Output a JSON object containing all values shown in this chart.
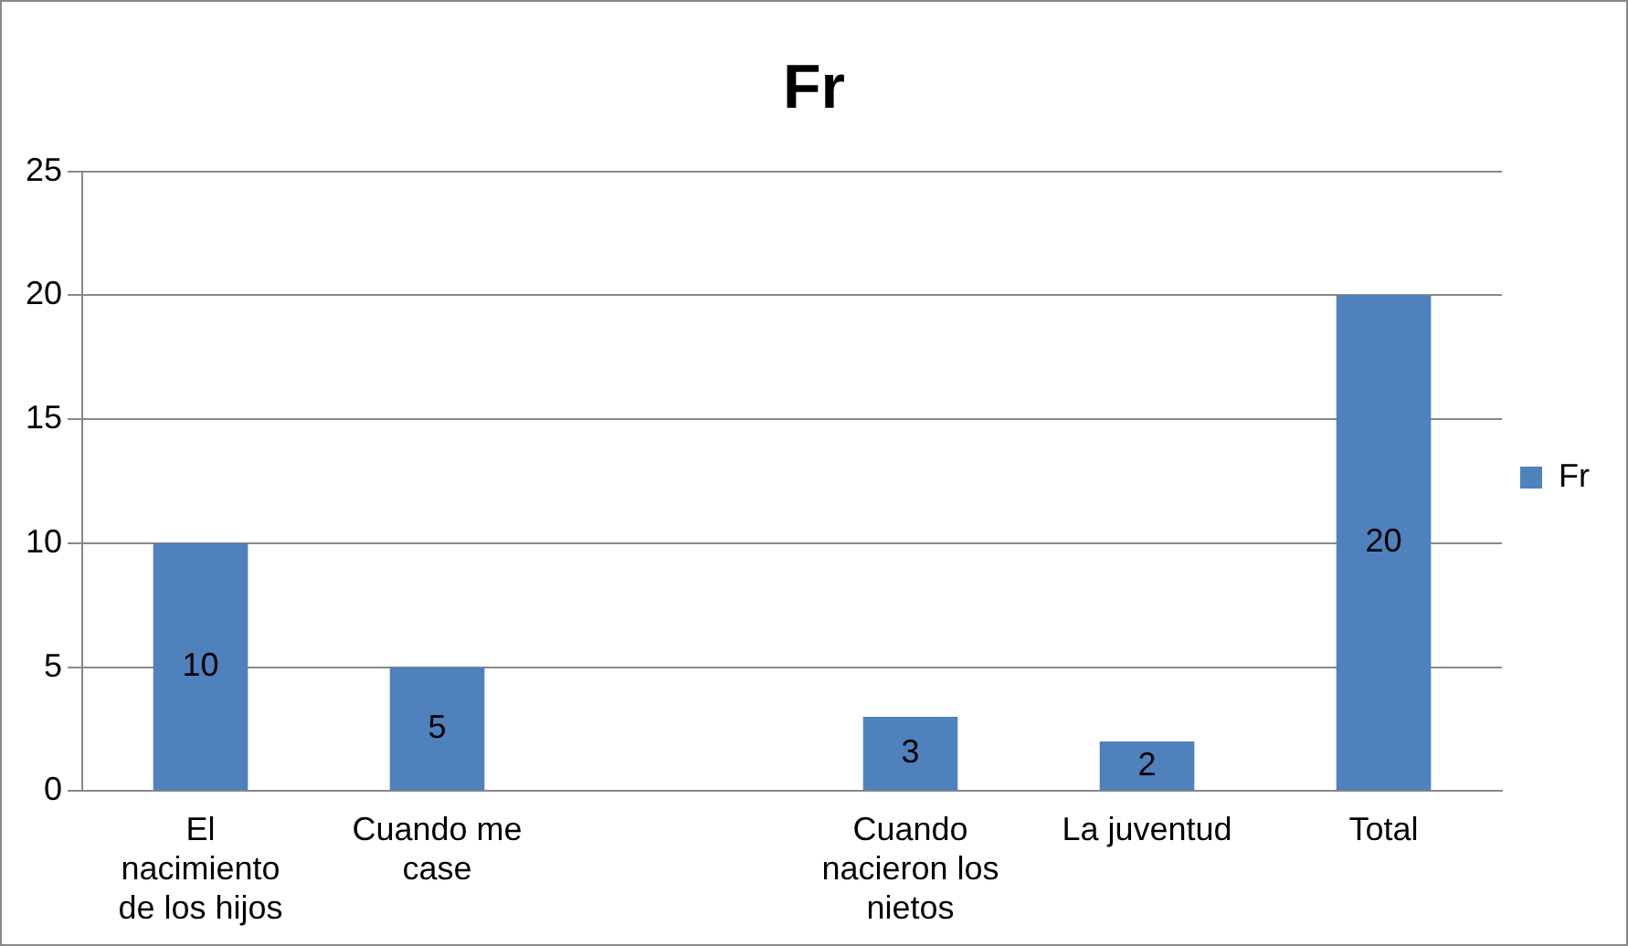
{
  "chart_data": {
    "type": "bar",
    "title": "Fr",
    "categories": [
      "El nacimiento de los hijos",
      "Cuando me case",
      null,
      "Cuando nacieron los nietos",
      "La juventud",
      "Total"
    ],
    "series": [
      {
        "name": "Fr",
        "color": "#4f81bd",
        "values": [
          10,
          5,
          null,
          3,
          2,
          20
        ]
      }
    ],
    "ylim": [
      0,
      25
    ],
    "yticks": [
      0,
      5,
      10,
      15,
      20,
      25
    ],
    "grid": "y",
    "legend": "right",
    "data_labels": true
  }
}
